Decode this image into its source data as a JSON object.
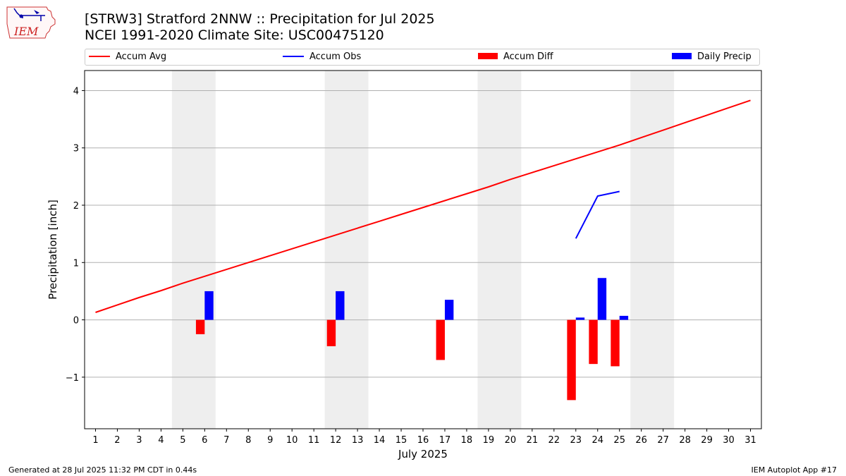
{
  "header": {
    "title": "[STRW3] Stratford 2NNW :: Precipitation for Jul 2025",
    "subtitle": "NCEI 1991-2020 Climate Site: USC00475120"
  },
  "footer": {
    "left": "Generated at 28 Jul 2025 11:32 PM CDT in 0.44s",
    "right": "IEM Autoplot App #17"
  },
  "logo": {
    "text": "IEM"
  },
  "chart_data": {
    "type": "bar",
    "xlabel": "July 2025",
    "ylabel": "Precipitation [inch]",
    "xlim": [
      0.5,
      31.5
    ],
    "ylim": [
      -1.9,
      4.35
    ],
    "yticks": [
      -1,
      0,
      1,
      2,
      3,
      4
    ],
    "ytick_labels": [
      "−1",
      "0",
      "1",
      "2",
      "3",
      "4"
    ],
    "x": [
      1,
      2,
      3,
      4,
      5,
      6,
      7,
      8,
      9,
      10,
      11,
      12,
      13,
      14,
      15,
      16,
      17,
      18,
      19,
      20,
      21,
      22,
      23,
      24,
      25,
      26,
      27,
      28,
      29,
      30,
      31
    ],
    "grid": "horizontal",
    "legend_position": "top",
    "weekend_spans": [
      [
        4.5,
        6.5
      ],
      [
        11.5,
        13.5
      ],
      [
        18.5,
        20.5
      ],
      [
        25.5,
        27.5
      ]
    ],
    "series": [
      {
        "name": "Accum Avg",
        "kind": "line",
        "color": "#ff0000",
        "x": [
          1,
          2,
          3,
          4,
          5,
          6,
          7,
          8,
          9,
          10,
          11,
          12,
          13,
          14,
          15,
          16,
          17,
          18,
          19,
          20,
          21,
          22,
          23,
          24,
          25,
          26,
          27,
          28,
          29,
          30,
          31
        ],
        "values": [
          0.13,
          0.26,
          0.39,
          0.51,
          0.64,
          0.76,
          0.88,
          1.0,
          1.12,
          1.24,
          1.36,
          1.48,
          1.6,
          1.72,
          1.84,
          1.96,
          2.08,
          2.2,
          2.32,
          2.45,
          2.57,
          2.69,
          2.81,
          2.93,
          3.05,
          3.18,
          3.31,
          3.44,
          3.57,
          3.7,
          3.83
        ]
      },
      {
        "name": "Accum Obs",
        "kind": "line",
        "color": "#0000ff",
        "x": [
          23,
          24,
          25
        ],
        "values": [
          1.42,
          2.16,
          2.24
        ]
      },
      {
        "name": "Accum Diff",
        "kind": "bar",
        "color": "#ff0000",
        "x": [
          6,
          12,
          17,
          23,
          24,
          25
        ],
        "values": [
          -0.25,
          -0.46,
          -0.7,
          -1.4,
          -0.77,
          -0.81
        ]
      },
      {
        "name": "Daily Precip",
        "kind": "bar",
        "color": "#0000ff",
        "x": [
          6,
          12,
          17,
          23,
          24,
          25
        ],
        "values": [
          0.5,
          0.5,
          0.35,
          0.04,
          0.73,
          0.07
        ]
      }
    ]
  }
}
